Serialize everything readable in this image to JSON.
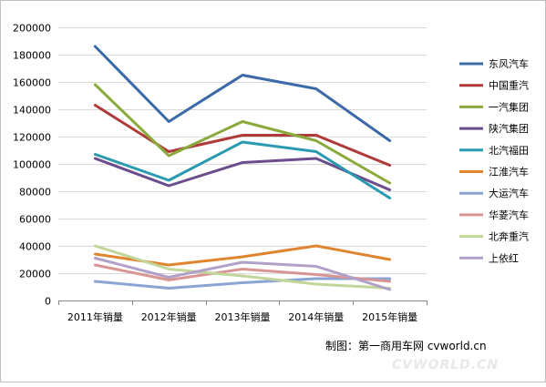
{
  "chart_data": {
    "type": "line",
    "categories": [
      "2011年销量",
      "2012年销量",
      "2013年销量",
      "2014年销量",
      "2015年销量"
    ],
    "ylim": [
      0,
      200000
    ],
    "yticks": [
      0,
      20000,
      40000,
      60000,
      80000,
      100000,
      120000,
      140000,
      160000,
      180000,
      200000
    ],
    "ytick_labels": [
      "0",
      "20000",
      "40000",
      "60000",
      "80000",
      "100000",
      "120000",
      "140000",
      "160000",
      "180000",
      "200000"
    ],
    "grid": true,
    "legend": "right",
    "series": [
      {
        "name": "东风汽车",
        "color": "#3c6aa8",
        "values": [
          186000,
          131000,
          165000,
          155000,
          117000
        ]
      },
      {
        "name": "中国重汽",
        "color": "#b03a3a",
        "values": [
          143000,
          109000,
          121000,
          121000,
          99000
        ]
      },
      {
        "name": "一汽集团",
        "color": "#8aaa3c",
        "values": [
          158000,
          106000,
          131000,
          117000,
          86000
        ]
      },
      {
        "name": "陕汽集团",
        "color": "#6b4c8c",
        "values": [
          104000,
          84000,
          101000,
          104000,
          81000
        ]
      },
      {
        "name": "北汽福田",
        "color": "#2a9ab0",
        "values": [
          107000,
          88000,
          116000,
          109000,
          75000
        ]
      },
      {
        "name": "江淮汽车",
        "color": "#e0852e",
        "values": [
          34000,
          26000,
          32000,
          40000,
          30000
        ]
      },
      {
        "name": "大运汽车",
        "color": "#8aa4d4",
        "values": [
          14000,
          9000,
          13000,
          16000,
          16000
        ]
      },
      {
        "name": "华菱汽车",
        "color": "#d99594",
        "values": [
          26000,
          15000,
          23000,
          19000,
          14000
        ]
      },
      {
        "name": "北奔重汽",
        "color": "#c2d69a",
        "values": [
          40000,
          23000,
          18000,
          12000,
          9000
        ]
      },
      {
        "name": "上依红",
        "color": "#b1a0c7",
        "values": [
          31000,
          17000,
          28000,
          25000,
          8000
        ]
      }
    ]
  },
  "credit": "制图：第一商用车网 cvworld.cn",
  "watermark": "CVWORLD.CN"
}
